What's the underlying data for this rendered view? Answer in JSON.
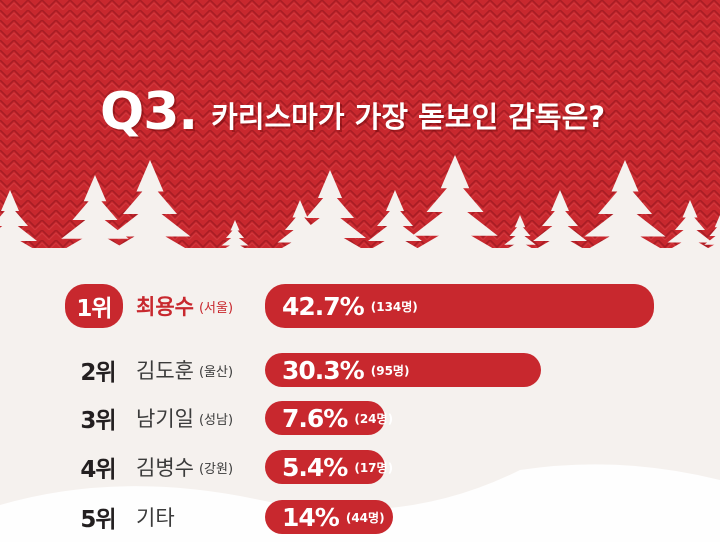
{
  "colors": {
    "red": "#c8282e",
    "red_dark": "#b51f27",
    "snow": "#f5f1ee",
    "text": "#231f20"
  },
  "title": {
    "q": "Q3.",
    "text": "카리스마가 가장 돋보인 감독은?"
  },
  "chart_data": {
    "type": "bar",
    "orientation": "horizontal",
    "title": "Q3. 카리스마가 가장 돋보인 감독은?",
    "xlim": [
      0,
      50
    ],
    "rows": [
      {
        "rank": "1위",
        "name": "최용수",
        "region": "(서울)",
        "pct_label": "42.7%",
        "count_label": "(134명)",
        "value": 42.7
      },
      {
        "rank": "2위",
        "name": "김도훈",
        "region": "(울산)",
        "pct_label": "30.3%",
        "count_label": "(95명)",
        "value": 30.3
      },
      {
        "rank": "3위",
        "name": "남기일",
        "region": "(성남)",
        "pct_label": "7.6%",
        "count_label": "(24명)",
        "value": 7.6
      },
      {
        "rank": "4위",
        "name": "김병수",
        "region": "(강원)",
        "pct_label": "5.4%",
        "count_label": "(17명)",
        "value": 5.4
      },
      {
        "rank": "5위",
        "name": "기타",
        "region": "",
        "pct_label": "14%",
        "count_label": "(44명)",
        "value": 14
      }
    ]
  }
}
